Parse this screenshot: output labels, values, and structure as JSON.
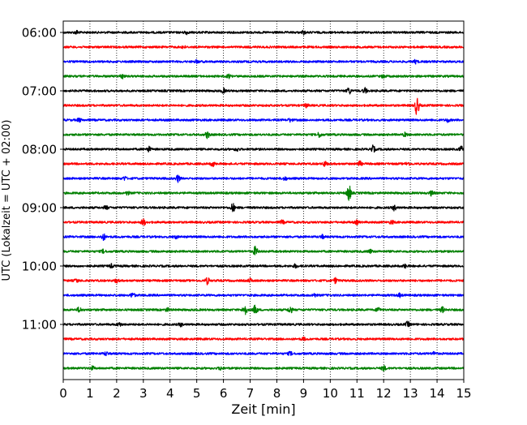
{
  "chart_data": {
    "type": "line",
    "title": "",
    "xlabel": "Zeit  [min]",
    "ylabel": "UTC (Lokalzeit = UTC + 02:00)",
    "xlim": [
      0,
      15
    ],
    "x_ticks": [
      0,
      1,
      2,
      3,
      4,
      5,
      6,
      7,
      8,
      9,
      10,
      11,
      12,
      13,
      14,
      15
    ],
    "x_tick_labels": [
      "0",
      "1",
      "2",
      "3",
      "4",
      "5",
      "6",
      "7",
      "8",
      "9",
      "10",
      "11",
      "12",
      "13",
      "14",
      "15"
    ],
    "y_tick_labels": [
      "06:00",
      "07:00",
      "08:00",
      "09:00",
      "10:00",
      "11:00"
    ],
    "y_ticks_traces": [
      0,
      4,
      8,
      12,
      16,
      20
    ],
    "vertical_grid": true,
    "grid_style": "dotted",
    "legend": "none",
    "colors": [
      "#000000",
      "#ff0000",
      "#0000ff",
      "#008000"
    ],
    "series": [
      {
        "start": "06:00",
        "color": "#000000",
        "events": [
          {
            "x": 0.5,
            "amp": 2
          },
          {
            "x": 4.6,
            "amp": 2
          },
          {
            "x": 9.0,
            "amp": 2
          }
        ]
      },
      {
        "start": "06:15",
        "color": "#ff0000",
        "events": [
          {
            "x": 4.5,
            "amp": 1.5
          }
        ]
      },
      {
        "start": "06:30",
        "color": "#0000ff",
        "events": [
          {
            "x": 5.0,
            "amp": 1.5
          },
          {
            "x": 13.2,
            "amp": 2
          }
        ]
      },
      {
        "start": "06:45",
        "color": "#008000",
        "events": [
          {
            "x": 2.2,
            "amp": 3
          },
          {
            "x": 6.2,
            "amp": 2
          },
          {
            "x": 12.0,
            "amp": 2
          }
        ]
      },
      {
        "start": "07:00",
        "color": "#000000",
        "events": [
          {
            "x": 6.0,
            "amp": 2.5
          },
          {
            "x": 10.7,
            "amp": 4
          },
          {
            "x": 11.3,
            "amp": 3
          }
        ]
      },
      {
        "start": "07:15",
        "color": "#ff0000",
        "events": [
          {
            "x": 9.1,
            "amp": 2
          },
          {
            "x": 13.25,
            "amp": 12
          }
        ]
      },
      {
        "start": "07:30",
        "color": "#0000ff",
        "events": [
          {
            "x": 0.6,
            "amp": 2
          },
          {
            "x": 8.5,
            "amp": 2
          },
          {
            "x": 14.4,
            "amp": 2
          }
        ]
      },
      {
        "start": "07:45",
        "color": "#008000",
        "events": [
          {
            "x": 5.4,
            "amp": 4
          },
          {
            "x": 9.6,
            "amp": 3
          },
          {
            "x": 12.8,
            "amp": 2
          }
        ]
      },
      {
        "start": "08:00",
        "color": "#000000",
        "events": [
          {
            "x": 3.2,
            "amp": 3
          },
          {
            "x": 6.5,
            "amp": 2
          },
          {
            "x": 11.6,
            "amp": 4
          },
          {
            "x": 14.9,
            "amp": 3
          }
        ]
      },
      {
        "start": "08:15",
        "color": "#ff0000",
        "events": [
          {
            "x": 5.6,
            "amp": 3
          },
          {
            "x": 9.8,
            "amp": 3
          },
          {
            "x": 11.1,
            "amp": 3
          },
          {
            "x": 12.9,
            "amp": 2
          }
        ]
      },
      {
        "start": "08:30",
        "color": "#0000ff",
        "events": [
          {
            "x": 2.3,
            "amp": 2
          },
          {
            "x": 4.3,
            "amp": 4
          },
          {
            "x": 8.3,
            "amp": 2
          }
        ]
      },
      {
        "start": "08:45",
        "color": "#008000",
        "events": [
          {
            "x": 2.4,
            "amp": 2
          },
          {
            "x": 10.7,
            "amp": 10
          },
          {
            "x": 13.8,
            "amp": 3
          }
        ]
      },
      {
        "start": "09:00",
        "color": "#000000",
        "events": [
          {
            "x": 1.6,
            "amp": 2
          },
          {
            "x": 6.35,
            "amp": 5
          },
          {
            "x": 12.4,
            "amp": 3
          }
        ]
      },
      {
        "start": "09:15",
        "color": "#ff0000",
        "events": [
          {
            "x": 3.0,
            "amp": 4
          },
          {
            "x": 8.2,
            "amp": 2
          },
          {
            "x": 11.0,
            "amp": 2
          },
          {
            "x": 12.3,
            "amp": 2
          }
        ]
      },
      {
        "start": "09:30",
        "color": "#0000ff",
        "events": [
          {
            "x": 1.5,
            "amp": 4
          },
          {
            "x": 4.2,
            "amp": 2
          },
          {
            "x": 9.7,
            "amp": 2
          }
        ]
      },
      {
        "start": "09:45",
        "color": "#008000",
        "events": [
          {
            "x": 1.5,
            "amp": 2
          },
          {
            "x": 7.2,
            "amp": 6
          },
          {
            "x": 11.5,
            "amp": 2
          }
        ]
      },
      {
        "start": "10:00",
        "color": "#000000",
        "events": [
          {
            "x": 1.8,
            "amp": 2
          },
          {
            "x": 8.7,
            "amp": 2
          },
          {
            "x": 12.8,
            "amp": 2
          }
        ]
      },
      {
        "start": "10:15",
        "color": "#ff0000",
        "events": [
          {
            "x": 0.5,
            "amp": 2
          },
          {
            "x": 2.0,
            "amp": 2
          },
          {
            "x": 5.4,
            "amp": 4
          },
          {
            "x": 7.0,
            "amp": 2
          },
          {
            "x": 10.2,
            "amp": 3
          }
        ]
      },
      {
        "start": "10:30",
        "color": "#0000ff",
        "events": [
          {
            "x": 2.6,
            "amp": 3
          },
          {
            "x": 9.4,
            "amp": 2
          },
          {
            "x": 12.6,
            "amp": 2
          }
        ]
      },
      {
        "start": "10:45",
        "color": "#008000",
        "events": [
          {
            "x": 0.6,
            "amp": 3
          },
          {
            "x": 3.9,
            "amp": 2
          },
          {
            "x": 6.8,
            "amp": 7
          },
          {
            "x": 7.2,
            "amp": 6
          },
          {
            "x": 8.5,
            "amp": 4
          },
          {
            "x": 11.8,
            "amp": 3
          },
          {
            "x": 14.2,
            "amp": 3
          }
        ]
      },
      {
        "start": "11:00",
        "color": "#000000",
        "events": [
          {
            "x": 2.1,
            "amp": 2
          },
          {
            "x": 4.4,
            "amp": 2
          },
          {
            "x": 12.9,
            "amp": 3
          }
        ]
      },
      {
        "start": "11:15",
        "color": "#ff0000",
        "events": [
          {
            "x": 9.0,
            "amp": 1.5
          }
        ]
      },
      {
        "start": "11:30",
        "color": "#0000ff",
        "events": [
          {
            "x": 1.6,
            "amp": 2
          },
          {
            "x": 8.5,
            "amp": 2
          },
          {
            "x": 13.9,
            "amp": 2
          }
        ]
      },
      {
        "start": "11:45",
        "color": "#008000",
        "events": [
          {
            "x": 1.1,
            "amp": 2
          },
          {
            "x": 5.9,
            "amp": 2
          },
          {
            "x": 12.0,
            "amp": 3
          }
        ]
      }
    ]
  }
}
